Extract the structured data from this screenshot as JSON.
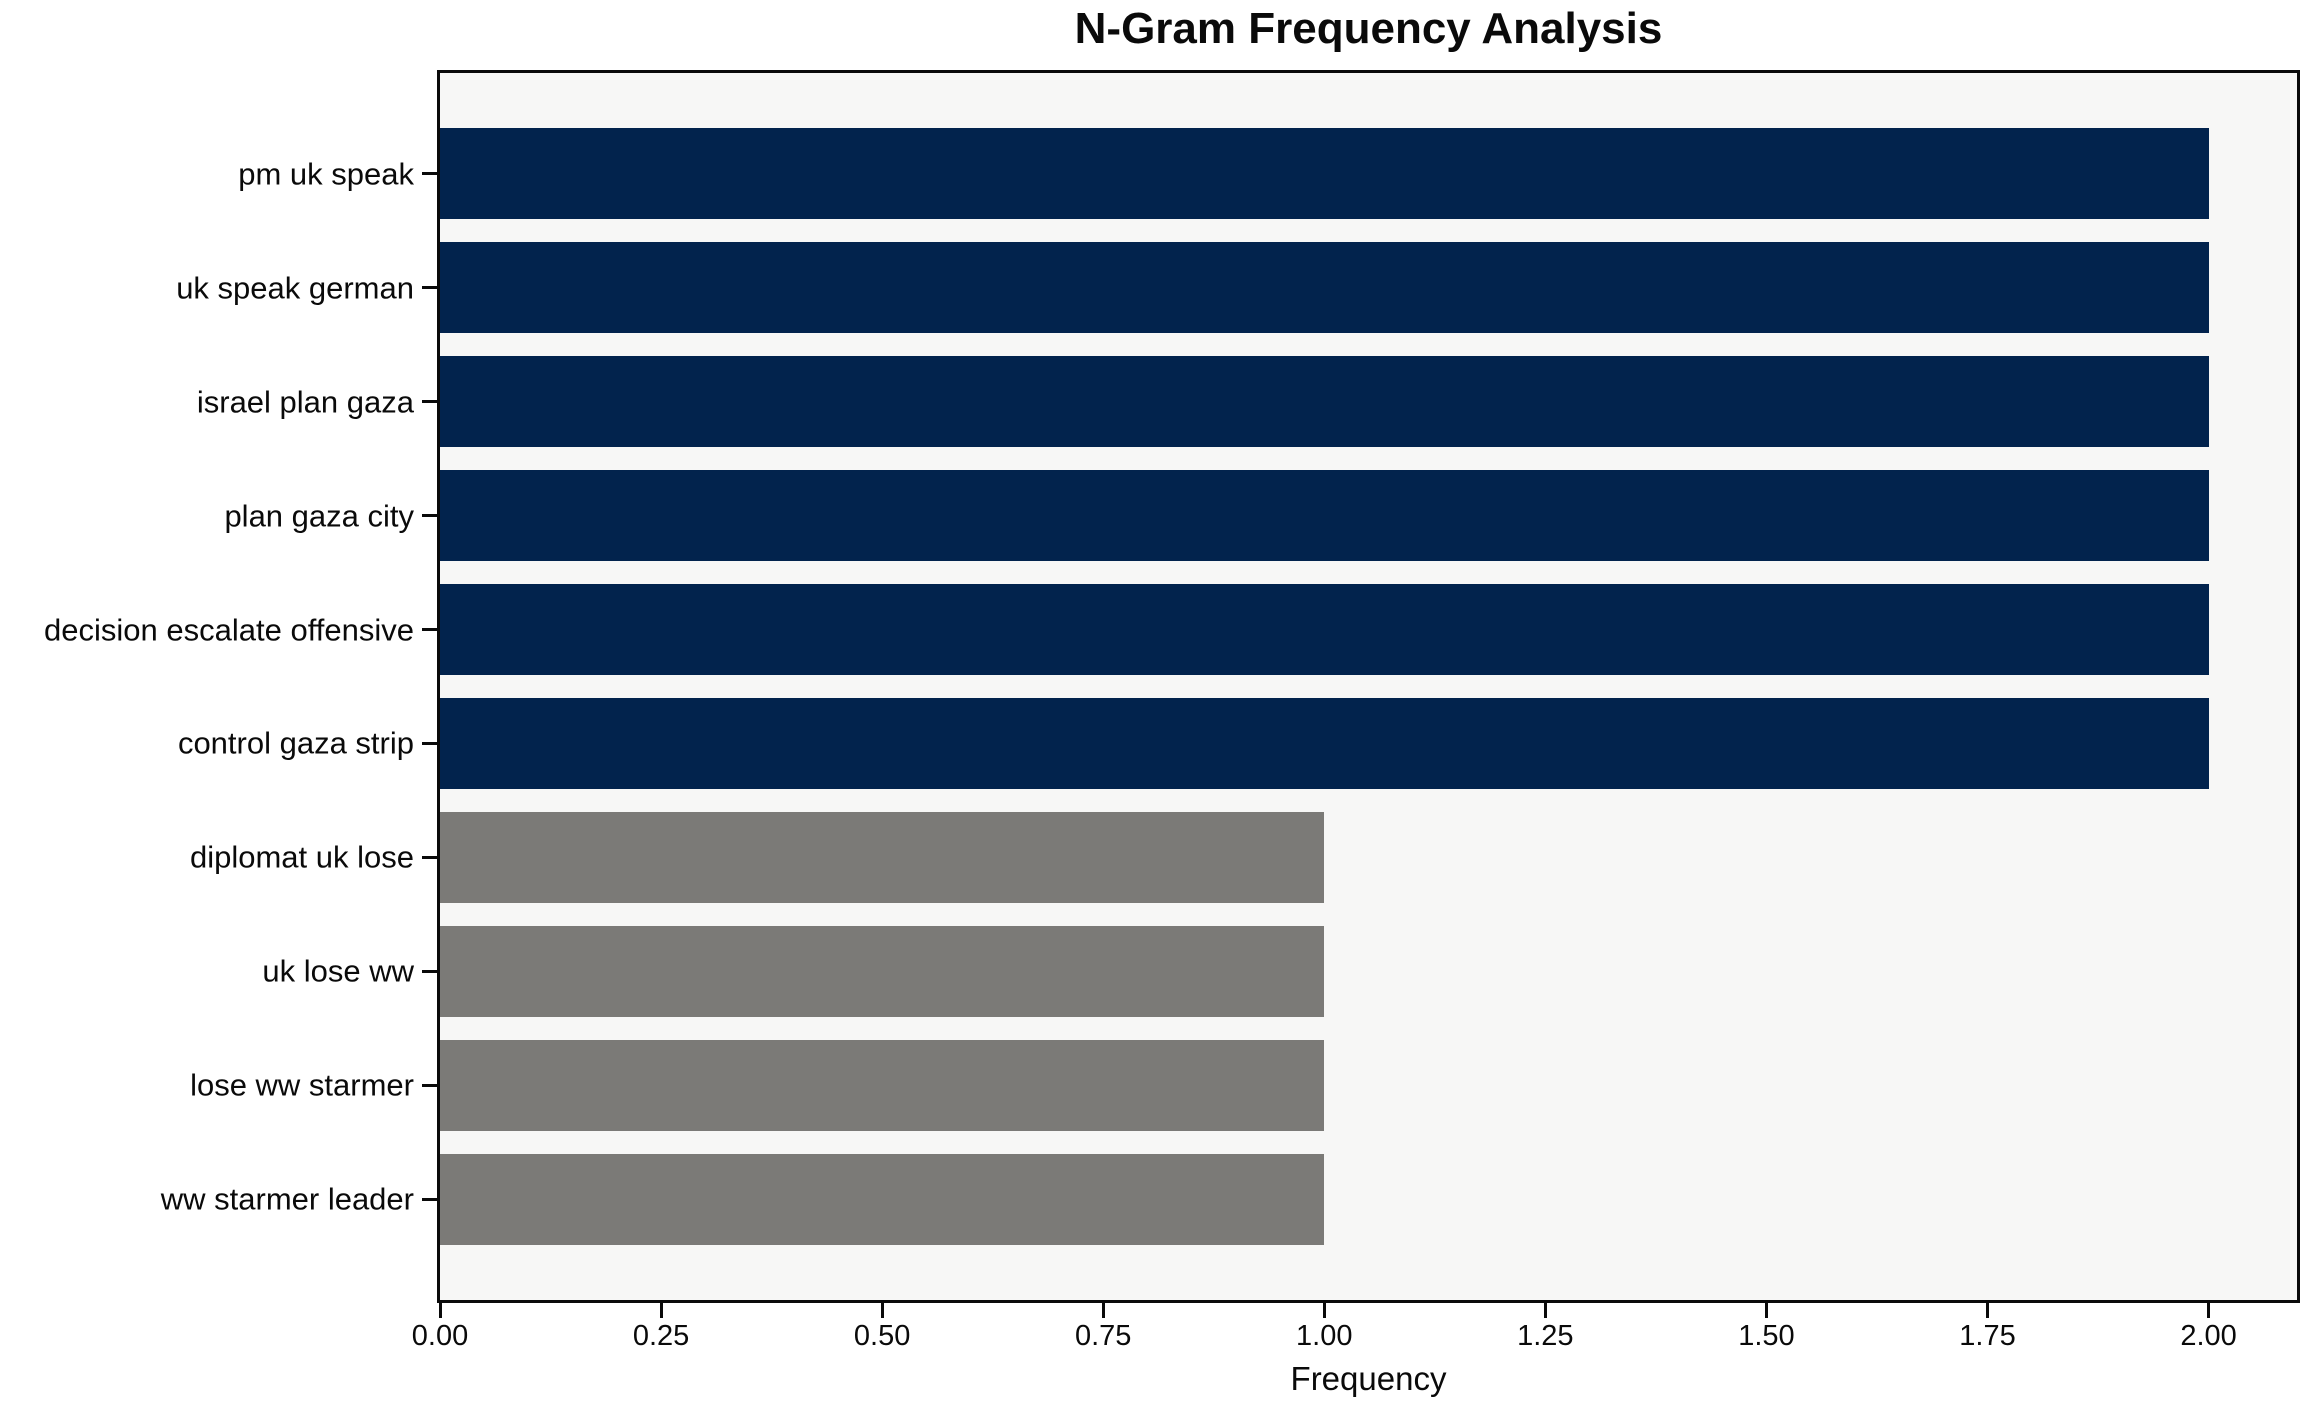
{
  "chart_data": {
    "type": "bar",
    "orientation": "horizontal",
    "title": "N-Gram Frequency Analysis",
    "xlabel": "Frequency",
    "ylabel": "",
    "categories": [
      "pm uk speak",
      "uk speak german",
      "israel plan gaza",
      "plan gaza city",
      "decision escalate offensive",
      "control gaza strip",
      "diplomat uk lose",
      "uk lose ww",
      "lose ww starmer",
      "ww starmer leader"
    ],
    "values": [
      2,
      2,
      2,
      2,
      2,
      2,
      1,
      1,
      1,
      1
    ],
    "bar_colors": [
      "#02234D",
      "#02234D",
      "#02234D",
      "#02234D",
      "#02234D",
      "#02234D",
      "#7B7A77",
      "#7B7A77",
      "#7B7A77",
      "#7B7A77"
    ],
    "xlim": [
      0,
      2.1
    ],
    "xticks": [
      0.0,
      0.25,
      0.5,
      0.75,
      1.0,
      1.25,
      1.5,
      1.75,
      2.0
    ],
    "xtick_labels": [
      "0.00",
      "0.25",
      "0.50",
      "0.75",
      "1.00",
      "1.25",
      "1.50",
      "1.75",
      "2.00"
    ],
    "grid": false,
    "legend": null,
    "colors": {
      "high_freq_bar": "#02234D",
      "low_freq_bar": "#7B7A77",
      "plot_background": "#F7F7F6",
      "figure_background": "#FFFFFF",
      "spine": "#0A0A0A",
      "text": "#0A0A0A"
    }
  }
}
